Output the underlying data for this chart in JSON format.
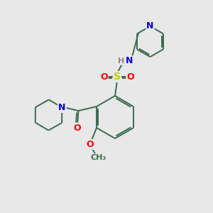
{
  "bg_color": "#e8e8e8",
  "bond_color": "#3a6b50",
  "bond_width": 1.4,
  "atom_colors": {
    "N": "#0000ee",
    "O": "#ff0000",
    "S": "#cccc00",
    "H": "#888888",
    "C": "#3a6b50"
  },
  "font_size": 9,
  "figsize": [
    3.0,
    3.0
  ],
  "dpi": 100
}
